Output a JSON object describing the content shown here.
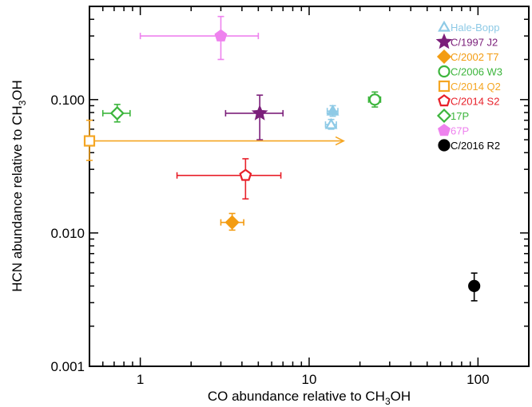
{
  "chart_data": {
    "type": "scatter",
    "title": "",
    "xlabel": {
      "pre": "CO abundance relative to CH",
      "sub": "3",
      "post": "OH"
    },
    "ylabel": {
      "pre": "HCN abundance relative to CH",
      "sub": "3",
      "post": "OH"
    },
    "x_scale": "log",
    "y_scale": "log",
    "xlim": [
      0.5,
      200
    ],
    "ylim": [
      0.001,
      0.5
    ],
    "grid": false,
    "legend_position": "top-right",
    "x_ticks": [
      {
        "value": 1,
        "label": "1"
      },
      {
        "value": 10,
        "label": "10"
      },
      {
        "value": 100,
        "label": "100"
      }
    ],
    "y_ticks": [
      {
        "value": 0.001,
        "label": "0.001"
      },
      {
        "value": 0.01,
        "label": "0.010"
      },
      {
        "value": 0.1,
        "label": "0.100"
      }
    ],
    "series": [
      {
        "name": "Hale-Bopp",
        "marker": "triangle",
        "filled": false,
        "color": "#8ecae6",
        "points": [
          {
            "x": 13.8,
            "y": 0.082,
            "xerr": [
              12.8,
              14.8
            ],
            "yerr": [
              0.075,
              0.09
            ],
            "filled": true
          },
          {
            "x": 13.5,
            "y": 0.065,
            "xerr": [
              12.5,
              14.5
            ],
            "yerr": [
              0.06,
              0.071
            ],
            "filled": false
          }
        ]
      },
      {
        "name": "C/1997 J2",
        "marker": "star",
        "filled": true,
        "color": "#7b1f7a",
        "points": [
          {
            "x": 5.1,
            "y": 0.079,
            "xerr": [
              3.2,
              7.0
            ],
            "yerr": [
              0.05,
              0.108
            ]
          }
        ]
      },
      {
        "name": "C/2002 T7",
        "marker": "diamond",
        "filled": true,
        "color": "#f39c12",
        "points": [
          {
            "x": 3.5,
            "y": 0.012,
            "xerr": [
              3.0,
              4.1
            ],
            "yerr": [
              0.0105,
              0.014
            ]
          }
        ]
      },
      {
        "name": "C/2006 W3",
        "marker": "circle",
        "filled": false,
        "color": "#3cb53c",
        "points": [
          {
            "x": 24.5,
            "y": 0.1,
            "xerr": [
              22.5,
              26.5
            ],
            "yerr": [
              0.088,
              0.114
            ]
          }
        ]
      },
      {
        "name": "C/2014 Q2",
        "marker": "square",
        "filled": false,
        "color": "#f5a623",
        "points": [
          {
            "x": 0.5,
            "y": 0.049,
            "xerr": [
              0.5,
              16
            ],
            "yerr": [
              0.035,
              0.07
            ],
            "upper_limit_arrow": true
          }
        ]
      },
      {
        "name": "C/2014 S2",
        "marker": "pentagon",
        "filled": false,
        "color": "#e8202a",
        "points": [
          {
            "x": 4.2,
            "y": 0.027,
            "xerr": [
              1.65,
              6.8
            ],
            "yerr": [
              0.018,
              0.036
            ]
          }
        ]
      },
      {
        "name": "17P",
        "marker": "diamond",
        "filled": false,
        "color": "#3cb53c",
        "points": [
          {
            "x": 0.73,
            "y": 0.079,
            "xerr": [
              0.6,
              0.87
            ],
            "yerr": [
              0.068,
              0.092
            ]
          }
        ]
      },
      {
        "name": "67P",
        "marker": "pentagon",
        "filled": true,
        "color": "#ee82ee",
        "points": [
          {
            "x": 3.0,
            "y": 0.3,
            "xerr": [
              1.0,
              5.0
            ],
            "yerr": [
              0.2,
              0.42
            ]
          }
        ]
      },
      {
        "name": "C/2016 R2",
        "marker": "circle",
        "filled": true,
        "color": "#000000",
        "points": [
          {
            "x": 95,
            "y": 0.004,
            "xerr": [
              95,
              95
            ],
            "yerr": [
              0.0031,
              0.005
            ]
          }
        ]
      }
    ]
  }
}
